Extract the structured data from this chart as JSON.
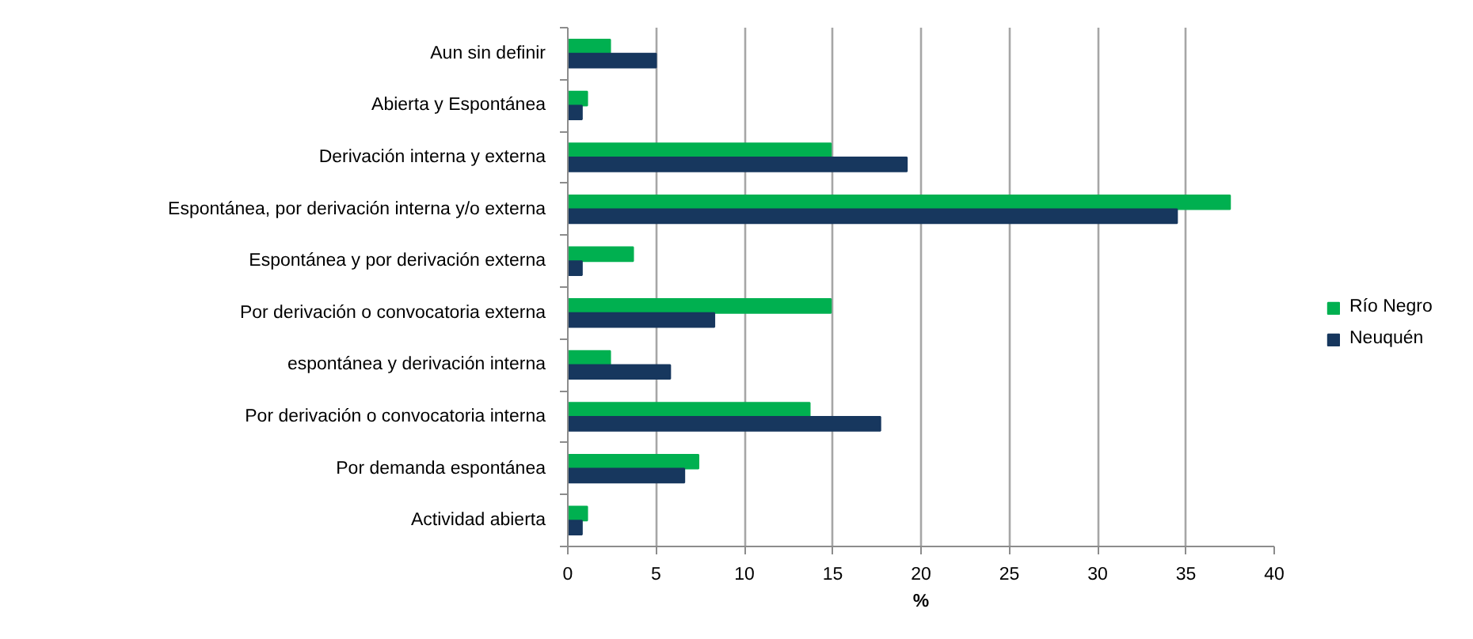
{
  "chart_data": {
    "type": "bar",
    "orientation": "horizontal",
    "categories": [
      "Aun sin definir",
      "Abierta y Espontánea",
      "Derivación interna y externa",
      "Espontánea, por derivación interna y/o externa",
      "Espontánea y por derivación externa",
      "Por derivación o convocatoria externa",
      "espontánea y derivación interna",
      "Por derivación o convocatoria interna",
      "Por demanda espontánea",
      "Actividad abierta"
    ],
    "series": [
      {
        "name": "Río Negro",
        "color": "#00b050",
        "values": [
          2.4,
          1.1,
          14.9,
          37.5,
          3.7,
          14.9,
          2.4,
          13.7,
          7.4,
          1.1
        ]
      },
      {
        "name": "Neuquén",
        "color": "#17375e",
        "values": [
          5.0,
          0.8,
          19.2,
          34.5,
          0.8,
          8.3,
          5.8,
          17.7,
          6.6,
          0.8
        ]
      }
    ],
    "xlabel": "%",
    "xlim": [
      0,
      40
    ],
    "xticks": [
      0,
      5,
      10,
      15,
      20,
      25,
      30,
      35,
      40
    ],
    "grid": "x",
    "legend": "right"
  }
}
